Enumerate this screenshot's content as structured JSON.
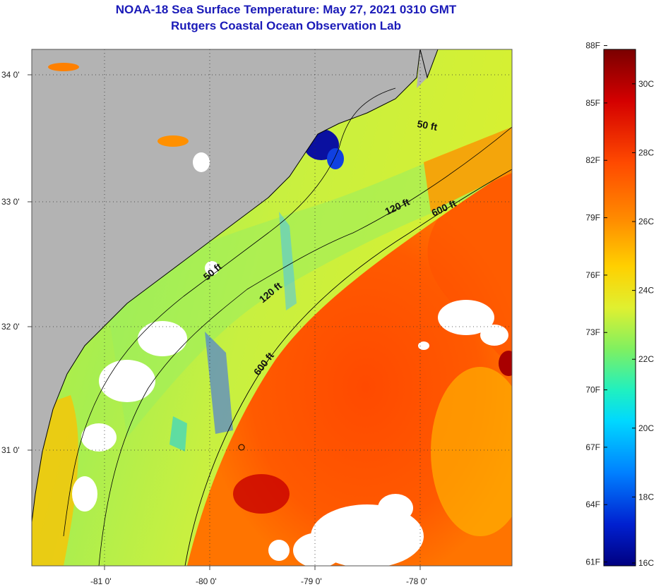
{
  "header": {
    "title": "NOAA-18 Sea Surface Temperature:  May 27, 2021 0310 GMT",
    "subtitle": "Rutgers Coastal Ocean Observation Lab"
  },
  "map": {
    "lon_ticks": [
      "-81 0'",
      "-80 0'",
      "-79 0'",
      "-78 0'"
    ],
    "lat_ticks": [
      "34 0'",
      "33 0'",
      "32 0'",
      "31 0'"
    ],
    "contour_labels": {
      "c50_north": "50 ft",
      "c50_south": "50 ft",
      "c120_north": "120 ft",
      "c120_south": "120 ft",
      "c600_north": "600 ft",
      "c600_south": "600 ft"
    },
    "colors": {
      "land": "#b3b3b3",
      "cloud": "#ffffff",
      "coastline": "#000000"
    }
  },
  "colorbar": {
    "fahrenheit_labels": [
      "88F",
      "85F",
      "82F",
      "79F",
      "76F",
      "73F",
      "70F",
      "67F",
      "64F",
      "61F"
    ],
    "celsius_labels": [
      "30C",
      "28C",
      "26C",
      "24C",
      "22C",
      "20C",
      "18C",
      "16C"
    ],
    "range_c": [
      16,
      31
    ],
    "gradient_colors": [
      "#7a0000",
      "#d40000",
      "#ff5a00",
      "#ff9a00",
      "#ffd800",
      "#c8f040",
      "#40f0a0",
      "#00e0e0",
      "#00a0ff",
      "#0040e0",
      "#000090"
    ]
  }
}
